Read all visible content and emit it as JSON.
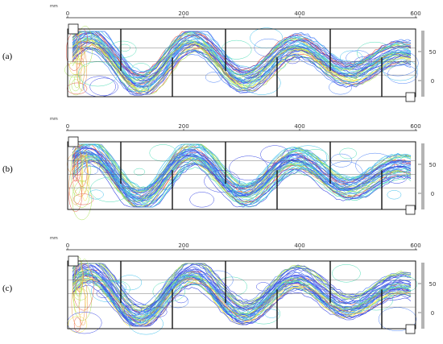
{
  "figure": {
    "unit": "mm",
    "x_ticks": [
      "0",
      "200",
      "400",
      "600"
    ],
    "y_ticks": [
      "50",
      "0"
    ],
    "stream_colors": [
      "#1a2be0",
      "#2e6cf5",
      "#1fb5e8",
      "#2fd6a8",
      "#9be03a",
      "#f0e02c",
      "#f08a2a",
      "#e23b2a"
    ],
    "panels": [
      {
        "label": "(a)"
      },
      {
        "label": "(b)"
      },
      {
        "label": "(c)"
      }
    ]
  }
}
